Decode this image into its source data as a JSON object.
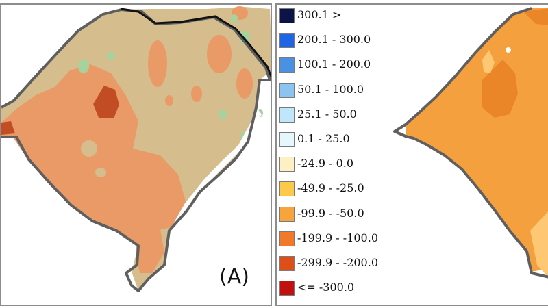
{
  "figure": {
    "panel_a": {
      "label": "(A)"
    },
    "legend": {
      "items": [
        {
          "label": "300.1 >",
          "color": "#0b1445"
        },
        {
          "label": "200.1 - 300.0",
          "color": "#1f63e6"
        },
        {
          "label": "100.1 - 200.0",
          "color": "#4a90e3"
        },
        {
          "label": "50.1 - 100.0",
          "color": "#8cc3f1"
        },
        {
          "label": "25.1 - 50.0",
          "color": "#bfe6fb"
        },
        {
          "label": "0.1 - 25.0",
          "color": "#e5f6fc"
        },
        {
          "label": "-24.9 - 0.0",
          "color": "#fdf0c2"
        },
        {
          "label": "-49.9 - -25.0",
          "color": "#fdc94a"
        },
        {
          "label": "-99.9 - -50.0",
          "color": "#f7a43c"
        },
        {
          "label": "-199.9 - -100.0",
          "color": "#f07a2a"
        },
        {
          "label": "-299.9 - -200.0",
          "color": "#e04e18"
        },
        {
          "label": "<= -300.0",
          "color": "#c01010"
        }
      ]
    },
    "map_colors": {
      "panel_a_background": "#d5bd8d",
      "panel_a_anomaly": "#e99a67",
      "panel_a_strong": "#c24d25",
      "panel_a_positive": "#a6d39d",
      "panel_b_main": "#f4a03e",
      "panel_b_dark": "#ea8528",
      "panel_b_light": "#fdc773",
      "outline": "#5f5f5f"
    }
  }
}
